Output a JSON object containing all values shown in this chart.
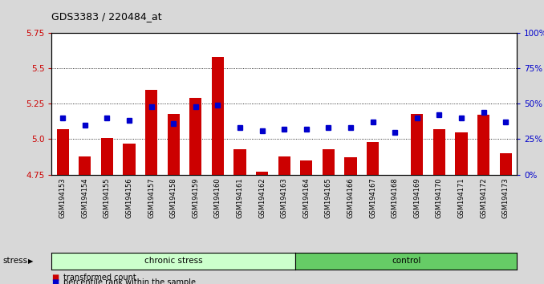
{
  "title": "GDS3383 / 220484_at",
  "samples": [
    "GSM194153",
    "GSM194154",
    "GSM194155",
    "GSM194156",
    "GSM194157",
    "GSM194158",
    "GSM194159",
    "GSM194160",
    "GSM194161",
    "GSM194162",
    "GSM194163",
    "GSM194164",
    "GSM194165",
    "GSM194166",
    "GSM194167",
    "GSM194168",
    "GSM194169",
    "GSM194170",
    "GSM194171",
    "GSM194172",
    "GSM194173"
  ],
  "red_values": [
    5.07,
    4.88,
    5.01,
    4.97,
    5.35,
    5.18,
    5.29,
    5.58,
    4.93,
    4.77,
    4.88,
    4.85,
    4.93,
    4.87,
    4.98,
    4.75,
    5.18,
    5.07,
    5.05,
    5.17,
    4.9
  ],
  "blue_values_pct": [
    40,
    35,
    40,
    38,
    48,
    36,
    48,
    49,
    33,
    31,
    32,
    32,
    33,
    33,
    37,
    30,
    40,
    42,
    40,
    44,
    37
  ],
  "ylim_left": [
    4.75,
    5.75
  ],
  "ylim_right": [
    0,
    100
  ],
  "yticks_left": [
    4.75,
    5.0,
    5.25,
    5.5,
    5.75
  ],
  "yticks_right": [
    0,
    25,
    50,
    75,
    100
  ],
  "ytick_labels_right": [
    "0%",
    "25%",
    "50%",
    "75%",
    "100%"
  ],
  "chronic_stress_count": 11,
  "control_count": 10,
  "group_labels": [
    "chronic stress",
    "control"
  ],
  "chronic_color": "#ccffcc",
  "control_color": "#66cc66",
  "bar_color": "#cc0000",
  "dot_color": "#0000cc",
  "bg_color": "#d8d8d8",
  "plot_bg": "#ffffff",
  "legend_items": [
    {
      "color": "#cc0000",
      "label": "transformed count"
    },
    {
      "color": "#0000cc",
      "label": "percentile rank within the sample"
    }
  ]
}
